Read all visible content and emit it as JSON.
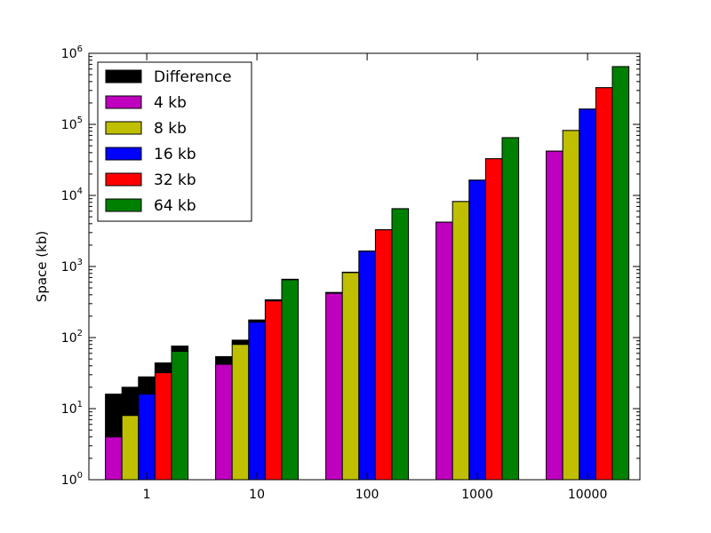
{
  "chart_data": {
    "type": "bar",
    "title": "",
    "xlabel": "",
    "ylabel": "Space (kb)",
    "yscale": "log",
    "ylim": [
      1,
      1000000
    ],
    "y_ticks": [
      {
        "value": 1,
        "base": "10",
        "exp": "0"
      },
      {
        "value": 10,
        "base": "10",
        "exp": "1"
      },
      {
        "value": 100,
        "base": "10",
        "exp": "2"
      },
      {
        "value": 1000,
        "base": "10",
        "exp": "3"
      },
      {
        "value": 10000,
        "base": "10",
        "exp": "4"
      },
      {
        "value": 100000,
        "base": "10",
        "exp": "5"
      },
      {
        "value": 1000000,
        "base": "10",
        "exp": "6"
      }
    ],
    "categories": [
      "1",
      "10",
      "100",
      "1000",
      "10000"
    ],
    "series": [
      {
        "name": "4 kb",
        "color": "#bf00bf",
        "values": [
          4,
          42,
          420,
          4200,
          42000
        ],
        "totals": [
          16,
          54,
          432,
          4212,
          42012
        ]
      },
      {
        "name": "8 kb",
        "color": "#bfbf00",
        "values": [
          8,
          80,
          820,
          8200,
          82000
        ],
        "totals": [
          20,
          92,
          832,
          8212,
          82012
        ]
      },
      {
        "name": "16 kb",
        "color": "#0000ff",
        "values": [
          16,
          165,
          1640,
          16400,
          164000
        ],
        "totals": [
          28,
          177,
          1652,
          16412,
          164012
        ]
      },
      {
        "name": "32 kb",
        "color": "#ff0000",
        "values": [
          32,
          328,
          3280,
          32800,
          328000
        ],
        "totals": [
          44,
          340,
          3292,
          32812,
          328012
        ]
      },
      {
        "name": "64 kb",
        "color": "#008000",
        "values": [
          64,
          650,
          6500,
          65000,
          650000
        ],
        "totals": [
          76,
          662,
          6512,
          65012,
          650012
        ]
      }
    ],
    "difference": {
      "name": "Difference",
      "color": "#000000"
    },
    "legend_position": "top-left",
    "grid": false
  }
}
